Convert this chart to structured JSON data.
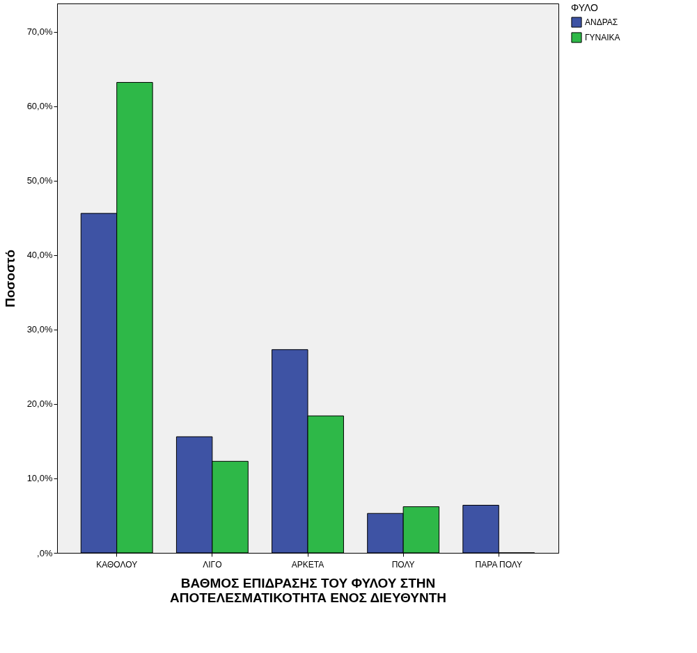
{
  "chart_data": {
    "type": "bar",
    "xlabel": "ΒΑΘΜΟΣ ΕΠΙΔΡΑΣΗΣ ΤΟΥ ΦΥΛΟΥ ΣΤΗΝ\nΑΠΟΤΕΛΕΣΜΑΤΙΚΟΤΗΤΑ ΕΝΟΣ ΔΙΕΥΘΥΝΤΗ",
    "ylabel": "Ποσοστό",
    "legend_title": "ΦΥΛΟ",
    "categories": [
      "ΚΑΘΟΛΟΥ",
      "ΛΙΓΟ",
      "ΑΡΚΕΤΑ",
      "ΠΟΛΥ",
      "ΠΑΡΑ ΠΟΛΥ"
    ],
    "series": [
      {
        "name": "ΑΝΔΡΑΣ",
        "color": "#3e53a4",
        "values": [
          45.6,
          15.6,
          27.3,
          5.3,
          6.4
        ]
      },
      {
        "name": "ΓΥΝΑΙΚΑ",
        "color": "#2eb848",
        "values": [
          63.2,
          12.3,
          18.4,
          6.2,
          0
        ]
      }
    ],
    "ylim": [
      0,
      73.8
    ],
    "yticks": [
      {
        "value": 0,
        "label": ",0%"
      },
      {
        "value": 10,
        "label": "10,0%"
      },
      {
        "value": 20,
        "label": "20,0%"
      },
      {
        "value": 30,
        "label": "30,0%"
      },
      {
        "value": 40,
        "label": "40,0%"
      },
      {
        "value": 50,
        "label": "50,0%"
      },
      {
        "value": 60,
        "label": "60,0%"
      },
      {
        "value": 70,
        "label": "70,0%"
      }
    ],
    "grid": false,
    "legend": "top right"
  }
}
